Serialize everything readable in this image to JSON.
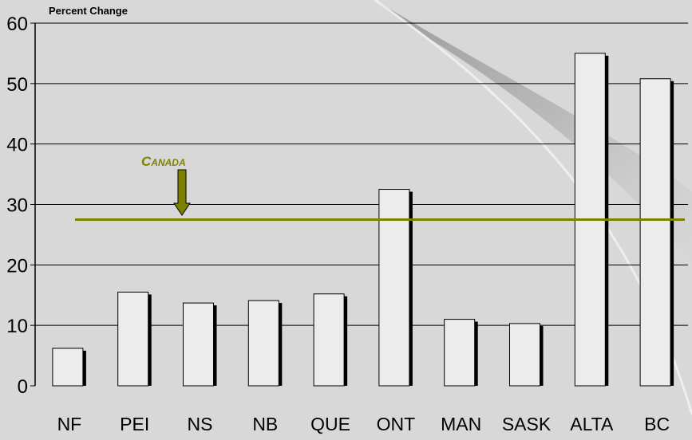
{
  "chart_data": {
    "type": "bar",
    "title": "",
    "ylabel": "Percent Change",
    "xlabel": "",
    "categories": [
      "NF",
      "PEI",
      "NS",
      "NB",
      "QUE",
      "ONT",
      "MAN",
      "SASK",
      "ALTA",
      "BC"
    ],
    "values": [
      6.2,
      15.5,
      13.7,
      14.1,
      15.2,
      32.5,
      11.0,
      10.3,
      55.0,
      50.8
    ],
    "ylim": [
      0,
      60
    ],
    "yticks": [
      0,
      10,
      20,
      30,
      40,
      50,
      60
    ],
    "grid": true,
    "reference_line": {
      "label": "Canada",
      "value": 27.5
    },
    "colors": {
      "background": "#d8d8d8",
      "bar_fill": "#ececec",
      "bar_shadow": "#000000",
      "reference_line": "#808000",
      "grid": "#000000"
    }
  }
}
